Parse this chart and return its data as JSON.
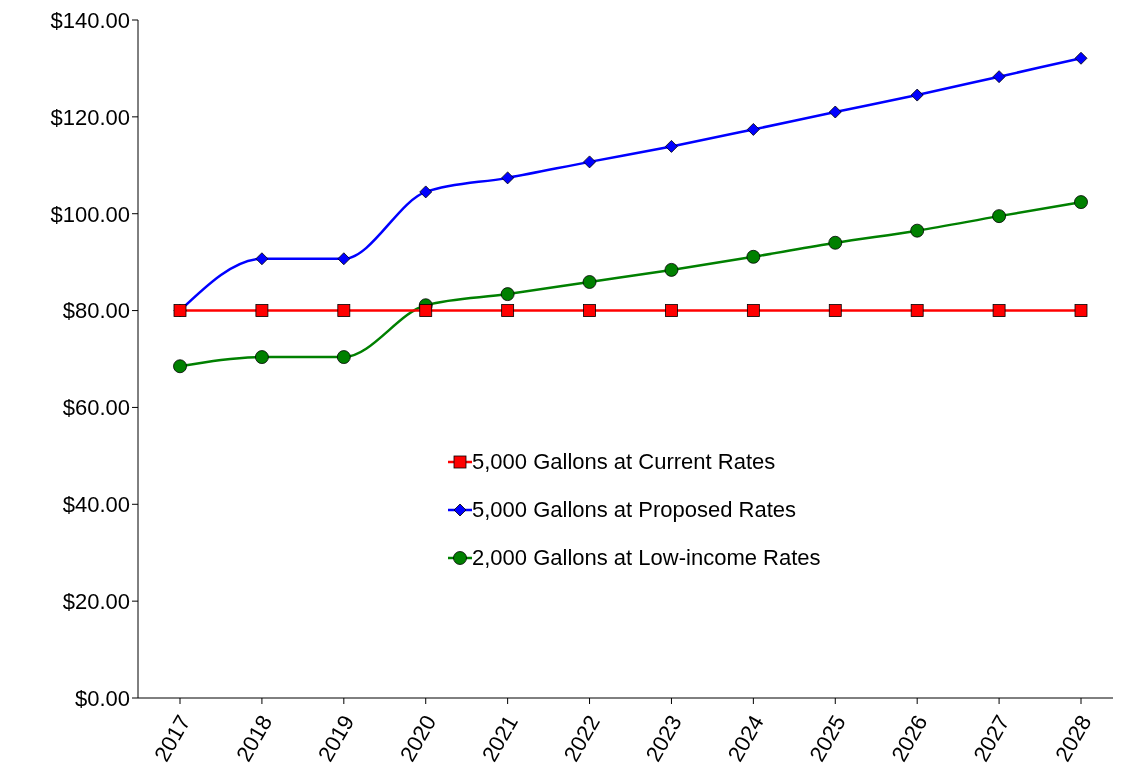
{
  "chart_data": {
    "type": "line",
    "categories": [
      "2017",
      "2018",
      "2019",
      "2020",
      "2021",
      "2022",
      "2023",
      "2024",
      "2025",
      "2026",
      "2027",
      "2028"
    ],
    "series": [
      {
        "name": "5,000 Gallons at Current Rates",
        "color": "#ff0000",
        "marker": "square",
        "values": [
          80,
          80,
          80,
          80,
          80,
          80,
          80,
          80,
          80,
          80,
          80,
          80
        ]
      },
      {
        "name": "5,000 Gallons at Proposed Rates",
        "color": "#0000ff",
        "marker": "diamond",
        "values": [
          80,
          90.7,
          90.7,
          104.5,
          107.4,
          110.7,
          113.9,
          117.4,
          121.0,
          124.5,
          128.3,
          132.1
        ]
      },
      {
        "name": "2,000 Gallons at Low-income Rates",
        "color": "#008000",
        "marker": "circle",
        "values": [
          68.5,
          70.4,
          70.4,
          81.1,
          83.4,
          85.9,
          88.4,
          91.1,
          94.0,
          96.5,
          99.5,
          102.4
        ]
      }
    ],
    "ylim": [
      0,
      140
    ],
    "yticks": [
      {
        "value": 0,
        "label": "$0.00"
      },
      {
        "value": 20,
        "label": "$20.00"
      },
      {
        "value": 40,
        "label": "$40.00"
      },
      {
        "value": 60,
        "label": "$60.00"
      },
      {
        "value": 80,
        "label": "$80.00"
      },
      {
        "value": 100,
        "label": "$100.00"
      },
      {
        "value": 120,
        "label": "$120.00"
      },
      {
        "value": 140,
        "label": "$140.00"
      }
    ],
    "grid": false,
    "legend": "center"
  }
}
